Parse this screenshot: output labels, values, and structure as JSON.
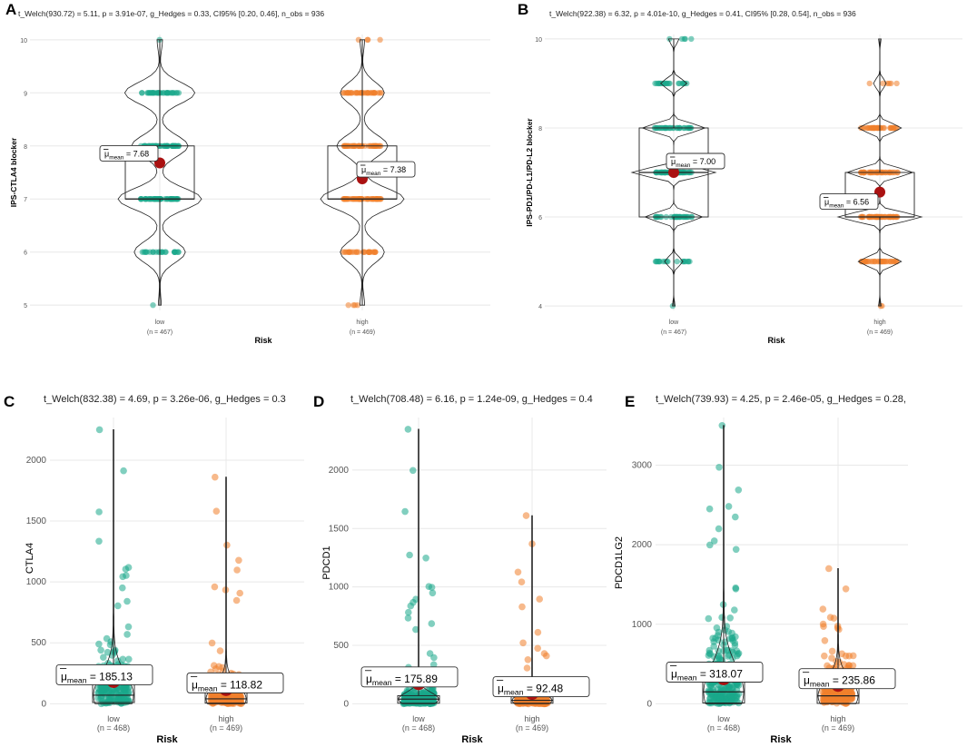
{
  "colors": {
    "low": "#1aa88a",
    "high": "#f07f2b",
    "mean_dot": "#aa1111",
    "grid": "#e8e8e8"
  },
  "chart_data": [
    {
      "panel": "A",
      "type": "violin-box-jitter",
      "subtitle": "t_Welch(930.72) = 5.11, p = 3.91e-07, g_Hedges = 0.33, CI95% [0.20, 0.46], n_obs = 936",
      "ylabel": "IPS-CTLA4 blocker",
      "xlabel": "Risk",
      "ylim": [
        4.9,
        10.1
      ],
      "yticks": [
        5,
        6,
        7,
        8,
        9,
        10
      ],
      "groups": [
        {
          "name": "low",
          "n_label": "(n = 467)",
          "mean": 7.68,
          "mean_label": "7.68",
          "q1": 7,
          "median": 7,
          "q3": 8,
          "min": 5,
          "max": 10
        },
        {
          "name": "high",
          "n_label": "(n = 469)",
          "mean": 7.38,
          "mean_label": "7.38",
          "q1": 7,
          "median": 7,
          "q3": 8,
          "min": 5,
          "max": 10
        }
      ]
    },
    {
      "panel": "B",
      "type": "violin-box-jitter",
      "subtitle": "t_Welch(922.38) = 6.32, p = 4.01e-10, g_Hedges = 0.41, CI95% [0.28, 0.54], n_obs = 936",
      "ylabel": "IPS-PD1/PD-L1/PD-L2 blocker",
      "xlabel": "Risk",
      "ylim": [
        3.9,
        10.1
      ],
      "yticks": [
        4,
        6,
        8,
        10
      ],
      "groups": [
        {
          "name": "low",
          "n_label": "(n = 467)",
          "mean": 7.0,
          "mean_label": "7.00",
          "q1": 6,
          "median": 7,
          "q3": 8,
          "min": 4,
          "max": 10
        },
        {
          "name": "high",
          "n_label": "(n = 469)",
          "mean": 6.56,
          "mean_label": "6.56",
          "q1": 6,
          "median": 6,
          "q3": 7,
          "min": 4,
          "max": 10
        }
      ]
    },
    {
      "panel": "C",
      "type": "violin-box-jitter",
      "subtitle": "t_Welch(832.38) = 4.69, p = 3.26e-06, g_Hedges = 0.3",
      "ylabel": "CTLA4",
      "xlabel": "Risk",
      "ylim": [
        -20,
        2350
      ],
      "yticks": [
        0,
        500,
        1000,
        1500,
        2000
      ],
      "groups": [
        {
          "name": "low",
          "n_label": "(n = 468)",
          "mean": 185.13,
          "mean_label": "185.13",
          "q1": 10,
          "median": 70,
          "q3": 250,
          "min": 0,
          "max": 2250
        },
        {
          "name": "high",
          "n_label": "(n = 469)",
          "mean": 118.82,
          "mean_label": "118.82",
          "q1": 5,
          "median": 40,
          "q3": 150,
          "min": 0,
          "max": 1860
        }
      ]
    },
    {
      "panel": "D",
      "type": "violin-box-jitter",
      "subtitle": "t_Welch(708.48) = 6.16, p = 1.24e-09, g_Hedges = 0.4",
      "ylabel": "PDCD1",
      "xlabel": "Risk",
      "ylim": [
        -20,
        2450
      ],
      "yticks": [
        0,
        500,
        1000,
        1500,
        2000
      ],
      "groups": [
        {
          "name": "low",
          "n_label": "(n = 468)",
          "mean": 175.89,
          "mean_label": "175.89",
          "q1": 5,
          "median": 40,
          "q3": 70,
          "min": 0,
          "max": 2350
        },
        {
          "name": "high",
          "n_label": "(n = 469)",
          "mean": 92.48,
          "mean_label": "92.48",
          "q1": 5,
          "median": 30,
          "q3": 60,
          "min": 0,
          "max": 1610
        }
      ]
    },
    {
      "panel": "E",
      "type": "violin-box-jitter",
      "subtitle": "t_Welch(739.93) = 4.25, p = 2.46e-05, g_Hedges = 0.28,",
      "ylabel": "PDCD1LG2",
      "xlabel": "Risk",
      "ylim": [
        -30,
        3600
      ],
      "yticks": [
        0,
        1000,
        2000,
        3000
      ],
      "groups": [
        {
          "name": "low",
          "n_label": "(n = 468)",
          "mean": 318.07,
          "mean_label": "318.07",
          "q1": 10,
          "median": 150,
          "q3": 500,
          "min": 0,
          "max": 3500
        },
        {
          "name": "high",
          "n_label": "(n = 469)",
          "mean": 235.86,
          "mean_label": "235.86",
          "q1": 5,
          "median": 100,
          "q3": 300,
          "min": 0,
          "max": 1700
        }
      ]
    }
  ]
}
